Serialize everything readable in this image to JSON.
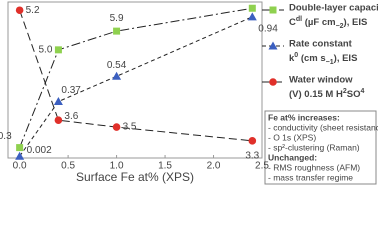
{
  "chart_data": {
    "type": "line",
    "x_label": "Surface Fe at% (XPS)",
    "xlim": [
      -0.12,
      2.5
    ],
    "xticks": [
      {
        "value": 0,
        "label": "0.0"
      },
      {
        "value": 0.5,
        "label": "0.5"
      },
      {
        "value": 1,
        "label": "1.0"
      },
      {
        "value": 1.5,
        "label": "1.5"
      },
      {
        "value": 2,
        "label": "2.0"
      },
      {
        "value": 2.5,
        "label": "2.5"
      }
    ],
    "x": [
      0,
      0.4,
      1.0,
      2.4
    ],
    "series": [
      {
        "name": "Double-layer capacitance",
        "name_detail": [
          "C",
          "dl",
          " (µF cm",
          "−2",
          "), EIS"
        ],
        "color": "#8fd14f",
        "marker": "square",
        "dash": "9 3 2 3",
        "values": [
          0.3,
          5.0,
          5.9,
          7.0
        ],
        "value_labels": [
          "0.3",
          "5.0",
          "5.9",
          "7.0"
        ],
        "ylim": [
          -0.2,
          7.3
        ]
      },
      {
        "name": "Rate constant",
        "name_detail": [
          "k",
          "0",
          " (cm s",
          "−1",
          "), EIS"
        ],
        "color": "#3b5fc0",
        "marker": "triangle",
        "dash": "4 3",
        "values": [
          0.002,
          0.37,
          0.54,
          0.94
        ],
        "value_labels": [
          "0.002",
          "0.37",
          "0.54",
          "0.94"
        ],
        "ylim": [
          -0.01,
          1.04
        ]
      },
      {
        "name": "Water window",
        "name_detail": [
          "(V) 0.15 M H",
          "2",
          "SO",
          "4"
        ],
        "color": "#e0302a",
        "marker": "circle",
        "dash": "8 4",
        "values": [
          5.2,
          3.6,
          3.5,
          3.3
        ],
        "value_labels": [
          "5.2",
          "3.6",
          "3.5",
          "3.3"
        ],
        "ylim": [
          3.05,
          5.32
        ]
      }
    ],
    "notes": {
      "heading1": "Fe at% increases:",
      "list1": [
        "- conductivity (sheet resistance)",
        "- O 1s (XPS)",
        "- sp²-clustering (Raman)"
      ],
      "heading2": "Unchanged:",
      "list2": [
        "- RMS roughness (AFM)",
        "- mass transfer regime"
      ]
    }
  }
}
